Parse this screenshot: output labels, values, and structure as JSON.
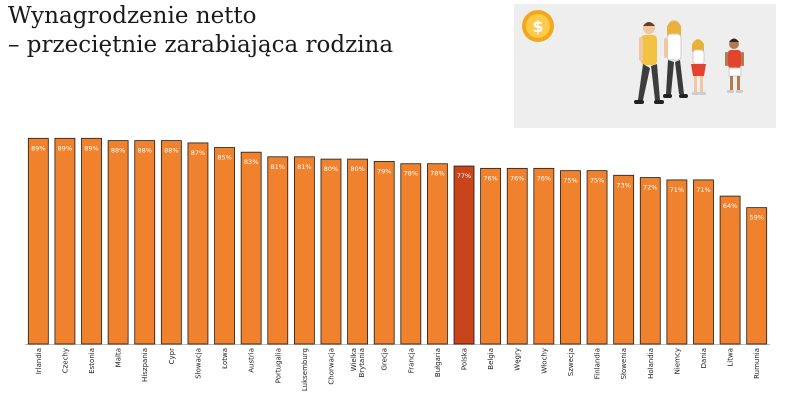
{
  "header": {
    "title_line1": "Wynagrodzenie netto",
    "title_line2": "– przeciętnie zarabiająca rodzina"
  },
  "illustration": {
    "icons": [
      "dollar-coin-icon",
      "family-walking-illustration"
    ],
    "background": "#eeeeee",
    "coin_color": "#f2a81d"
  },
  "colors": {
    "bar": "#f0822e",
    "bar_highlight": "#c8441a",
    "bar_stroke": "#1a1a1a",
    "value_label": "#ffffff"
  },
  "chart_data": {
    "type": "bar",
    "title": "",
    "xlabel": "",
    "ylabel": "",
    "ylim": [
      0,
      90
    ],
    "grid": false,
    "highlight": "Polska",
    "categories": [
      "Irlandia",
      "Czechy",
      "Estonia",
      "Malta",
      "Hiszpania",
      "Cypr",
      "Słowacja",
      "Łotwa",
      "Austria",
      "Portugalia",
      "Luksemburg",
      "Chorwacja",
      "Wielka Brytania",
      "Grecja",
      "Francja",
      "Bułgaria",
      "Polska",
      "Belgia",
      "Węgry",
      "Włochy",
      "Szwecja",
      "Finlandia",
      "Słowenia",
      "Holandia",
      "Niemcy",
      "Dania",
      "Litwa",
      "Rumunia"
    ],
    "category_lines": [
      [
        "Irlandia"
      ],
      [
        "Czechy"
      ],
      [
        "Estonia"
      ],
      [
        "Malta"
      ],
      [
        "Hiszpania"
      ],
      [
        "Cypr"
      ],
      [
        "Słowacja"
      ],
      [
        "Łotwa"
      ],
      [
        "Austria"
      ],
      [
        "Portugalia"
      ],
      [
        "Luksemburg"
      ],
      [
        "Chorwacja"
      ],
      [
        "Wielka",
        "Brytania"
      ],
      [
        "Grecja"
      ],
      [
        "Francja"
      ],
      [
        "Bułgaria"
      ],
      [
        "Polska"
      ],
      [
        "Belgia"
      ],
      [
        "Węgry"
      ],
      [
        "Włochy"
      ],
      [
        "Szwecja"
      ],
      [
        "Finlandia"
      ],
      [
        "Słowenia"
      ],
      [
        "Holandia"
      ],
      [
        "Niemcy"
      ],
      [
        "Dania"
      ],
      [
        "Litwa"
      ],
      [
        "Rumunia"
      ]
    ],
    "values": [
      89,
      89,
      89,
      88,
      88,
      88,
      87,
      85,
      83,
      81,
      81,
      80,
      80,
      79,
      78,
      78,
      77,
      76,
      76,
      76,
      75,
      75,
      73,
      72,
      71,
      71,
      64,
      59
    ],
    "value_labels": [
      "89%",
      "89%",
      "89%",
      "88%",
      "88%",
      "88%",
      "87%",
      "85%",
      "83%",
      "81%",
      "81%",
      "80%",
      "80%",
      "79%",
      "78%",
      "78%",
      "77%",
      "76%",
      "76%",
      "76%",
      "75%",
      "75%",
      "73%",
      "72%",
      "71%",
      "71%",
      "64%",
      "59%"
    ]
  }
}
